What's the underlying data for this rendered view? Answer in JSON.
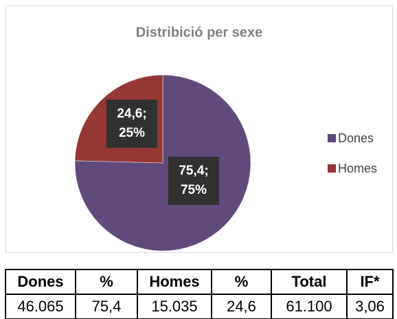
{
  "chart_data": {
    "type": "pie",
    "title": "Distribició per sexe",
    "categories": [
      "Dones",
      "Homes"
    ],
    "values": [
      75.4,
      24.6
    ],
    "value_labels": [
      [
        "75,4;",
        "75%"
      ],
      [
        "24,6;",
        "25%"
      ]
    ],
    "colors": [
      "#604a7b",
      "#953735"
    ],
    "legend": "right"
  },
  "table": {
    "header": [
      "Dones",
      "%",
      "Homes",
      "%",
      "Total",
      "IF*"
    ],
    "rows": [
      [
        "46.065",
        "75,4",
        "15.035",
        "24,6",
        "61.100",
        "3,06"
      ]
    ]
  }
}
